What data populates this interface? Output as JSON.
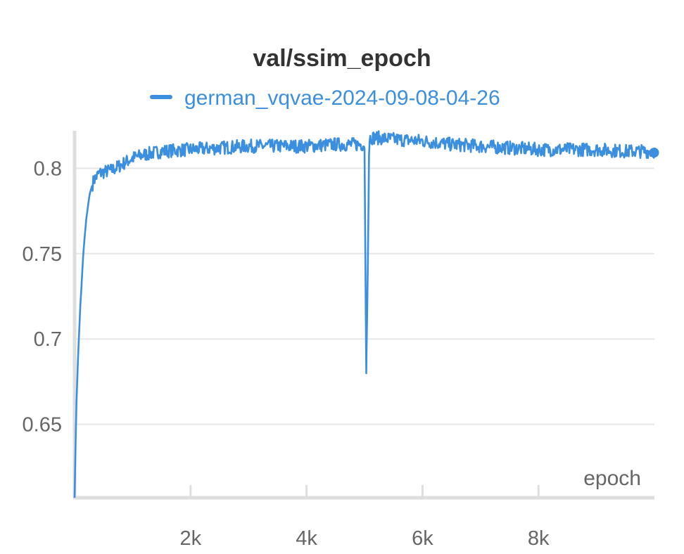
{
  "chart_data": {
    "type": "line",
    "title": "val/ssim_epoch",
    "xlabel": "epoch",
    "ylabel": "",
    "legend_position": "top-center",
    "xlim": [
      0,
      10000
    ],
    "ylim": [
      0.607,
      0.822
    ],
    "x_ticks": [
      2000,
      4000,
      6000,
      8000
    ],
    "x_tick_labels": [
      "2k",
      "4k",
      "6k",
      "8k"
    ],
    "y_ticks": [
      0.65,
      0.7,
      0.75,
      0.8
    ],
    "y_tick_labels": [
      "0.65",
      "0.7",
      "0.75",
      "0.8"
    ],
    "grid": true,
    "series": [
      {
        "name": "german_vqvae-2024-09-08-04-26",
        "color": "#3b8fde",
        "noise": 0.004,
        "x": [
          0,
          30,
          60,
          100,
          150,
          200,
          260,
          330,
          420,
          520,
          650,
          800,
          1000,
          1200,
          1500,
          2000,
          2500,
          3000,
          3500,
          4000,
          4500,
          5000,
          5030,
          5060,
          5080,
          5100,
          5200,
          5500,
          6000,
          6500,
          7000,
          7500,
          8000,
          8500,
          9000,
          9500,
          10000
        ],
        "y": [
          0.607,
          0.66,
          0.69,
          0.72,
          0.75,
          0.77,
          0.785,
          0.793,
          0.797,
          0.798,
          0.799,
          0.802,
          0.806,
          0.808,
          0.81,
          0.811,
          0.812,
          0.813,
          0.813,
          0.813,
          0.814,
          0.814,
          0.68,
          0.75,
          0.815,
          0.818,
          0.818,
          0.817,
          0.816,
          0.814,
          0.813,
          0.812,
          0.811,
          0.811,
          0.811,
          0.81,
          0.81
        ]
      }
    ]
  }
}
